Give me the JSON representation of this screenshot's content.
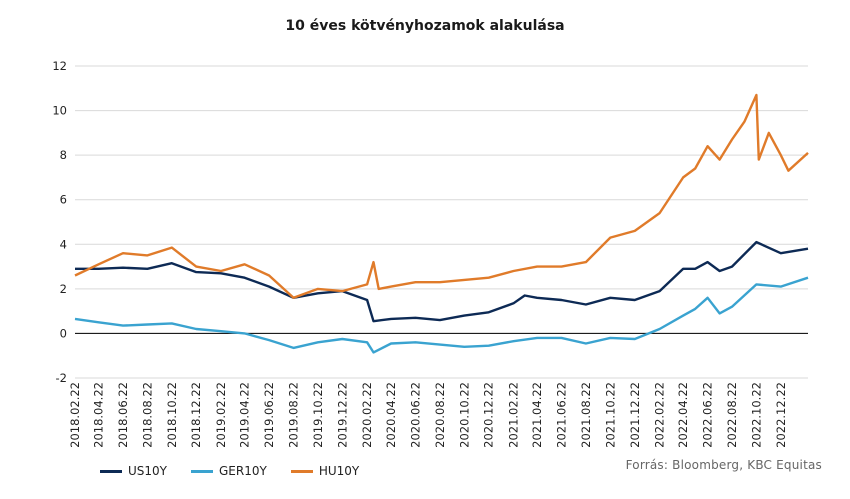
{
  "colors": {
    "US10Y": "#0d2a55",
    "GER10Y": "#3aa3d0",
    "HU10Y": "#e07b2a",
    "zero_line": "#000000",
    "grid": "#d9d9d9"
  },
  "source_note": "Forrás: Bloomberg, KBC Equitas",
  "chart_data": {
    "type": "line",
    "title": "10 éves kötvényhozamok alakulása",
    "xlabel": "",
    "ylabel": "",
    "ylim": [
      -2,
      12
    ],
    "yticks": [
      -2,
      0,
      2,
      4,
      6,
      8,
      10,
      12
    ],
    "grid": true,
    "legend_position": "bottom-left",
    "xlim": [
      "2018.02.22",
      "2023.02.28"
    ],
    "xtick_labels": [
      "2018.02.22",
      "2018.04.22",
      "2018.06.22",
      "2018.08.22",
      "2018.10.22",
      "2018.12.22",
      "2019.02.22",
      "2019.04.22",
      "2019.06.22",
      "2019.08.22",
      "2019.10.22",
      "2019.12.22",
      "2020.02.22",
      "2020.04.22",
      "2020.06.22",
      "2020.08.22",
      "2020.10.22",
      "2020.12.22",
      "2021.02.22",
      "2021.04.22",
      "2021.06.22",
      "2021.08.22",
      "2021.10.22",
      "2021.12.22",
      "2022.02.22",
      "2022.04.22",
      "2022.06.22",
      "2022.08.22",
      "2022.10.22",
      "2022.12.22"
    ],
    "series": [
      {
        "name": "US10Y",
        "x": [
          "2018.02.22",
          "2018.04.22",
          "2018.06.22",
          "2018.08.22",
          "2018.10.22",
          "2018.12.22",
          "2019.02.22",
          "2019.04.22",
          "2019.06.22",
          "2019.08.22",
          "2019.10.22",
          "2019.12.22",
          "2020.02.22",
          "2020.03.09",
          "2020.04.22",
          "2020.06.22",
          "2020.08.22",
          "2020.10.22",
          "2020.12.22",
          "2021.02.22",
          "2021.03.22",
          "2021.04.22",
          "2021.06.22",
          "2021.08.22",
          "2021.10.22",
          "2021.12.22",
          "2022.02.22",
          "2022.04.22",
          "2022.05.22",
          "2022.06.22",
          "2022.07.22",
          "2022.08.22",
          "2022.10.22",
          "2022.12.22",
          "2023.02.28"
        ],
        "y": [
          2.9,
          2.9,
          2.95,
          2.9,
          3.15,
          2.75,
          2.7,
          2.5,
          2.1,
          1.6,
          1.8,
          1.9,
          1.5,
          0.55,
          0.65,
          0.7,
          0.6,
          0.8,
          0.95,
          1.35,
          1.7,
          1.6,
          1.5,
          1.3,
          1.6,
          1.5,
          1.9,
          2.9,
          2.9,
          3.2,
          2.8,
          3.0,
          4.1,
          3.6,
          3.8
        ]
      },
      {
        "name": "GER10Y",
        "x": [
          "2018.02.22",
          "2018.04.22",
          "2018.06.22",
          "2018.08.22",
          "2018.10.22",
          "2018.12.22",
          "2019.02.22",
          "2019.04.22",
          "2019.06.22",
          "2019.08.22",
          "2019.10.22",
          "2019.12.22",
          "2020.02.22",
          "2020.03.09",
          "2020.04.22",
          "2020.06.22",
          "2020.08.22",
          "2020.10.22",
          "2020.12.22",
          "2021.02.22",
          "2021.04.22",
          "2021.06.22",
          "2021.08.22",
          "2021.10.22",
          "2021.12.22",
          "2022.02.22",
          "2022.04.22",
          "2022.05.22",
          "2022.06.22",
          "2022.07.22",
          "2022.08.22",
          "2022.10.22",
          "2022.12.22",
          "2023.02.28"
        ],
        "y": [
          0.65,
          0.5,
          0.35,
          0.4,
          0.45,
          0.2,
          0.1,
          0.0,
          -0.3,
          -0.65,
          -0.4,
          -0.25,
          -0.4,
          -0.85,
          -0.45,
          -0.4,
          -0.5,
          -0.6,
          -0.55,
          -0.35,
          -0.2,
          -0.2,
          -0.45,
          -0.2,
          -0.25,
          0.2,
          0.8,
          1.1,
          1.6,
          0.9,
          1.2,
          2.2,
          2.1,
          2.5
        ]
      },
      {
        "name": "HU10Y",
        "x": [
          "2018.02.22",
          "2018.04.22",
          "2018.06.22",
          "2018.08.22",
          "2018.10.22",
          "2018.12.22",
          "2019.02.22",
          "2019.04.22",
          "2019.06.22",
          "2019.08.22",
          "2019.10.22",
          "2019.12.22",
          "2020.02.22",
          "2020.03.09",
          "2020.03.22",
          "2020.04.22",
          "2020.06.22",
          "2020.08.22",
          "2020.10.22",
          "2020.12.22",
          "2021.02.22",
          "2021.04.22",
          "2021.06.22",
          "2021.08.22",
          "2021.10.22",
          "2021.12.22",
          "2022.02.22",
          "2022.04.22",
          "2022.05.22",
          "2022.06.22",
          "2022.07.22",
          "2022.08.22",
          "2022.09.22",
          "2022.10.22",
          "2022.10.28",
          "2022.11.22",
          "2022.12.22",
          "2023.01.10",
          "2023.02.28"
        ],
        "y": [
          2.6,
          3.1,
          3.6,
          3.5,
          3.85,
          3.0,
          2.8,
          3.1,
          2.6,
          1.6,
          2.0,
          1.9,
          2.2,
          3.2,
          2.0,
          2.1,
          2.3,
          2.3,
          2.4,
          2.5,
          2.8,
          3.0,
          3.0,
          3.2,
          4.3,
          4.6,
          5.4,
          7.0,
          7.4,
          8.4,
          7.8,
          8.7,
          9.5,
          10.7,
          7.8,
          9.0,
          8.0,
          7.3,
          8.1
        ]
      }
    ]
  }
}
